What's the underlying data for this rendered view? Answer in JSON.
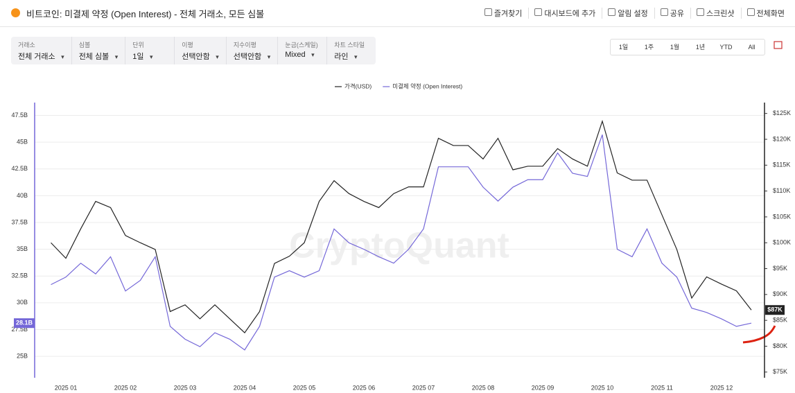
{
  "header": {
    "title": "비트코인: 미결제 약정 (Open Interest) - 전체 거래소, 모든 심볼",
    "actions": [
      "즐겨찾기",
      "대시보드에 추가",
      "알림 설정",
      "공유",
      "스크린샷",
      "전체화면"
    ]
  },
  "filters": [
    {
      "label": "거래소",
      "value": "전체 거래소"
    },
    {
      "label": "심볼",
      "value": "전체 심볼"
    },
    {
      "label": "단위",
      "value": "1일"
    },
    {
      "label": "이평",
      "value": "선택안함"
    },
    {
      "label": "지수이평",
      "value": "선택안함"
    },
    {
      "label": "눈금(스케일)",
      "value": "Mixed"
    },
    {
      "label": "차트 스타일",
      "value": "라인"
    }
  ],
  "ranges": [
    "1일",
    "1주",
    "1월",
    "1년",
    "YTD",
    "All"
  ],
  "chart_data": {
    "type": "line",
    "watermark": "CryptoQuant",
    "grid": true,
    "categories": [
      null,
      "2025 01",
      null,
      null,
      null,
      "2025 02",
      null,
      null,
      null,
      "2025 03",
      null,
      null,
      null,
      "2025 04",
      null,
      null,
      null,
      "2025 05",
      null,
      null,
      null,
      "2025 06",
      null,
      null,
      null,
      "2025 07",
      null,
      null,
      null,
      "2025 08",
      null,
      null,
      null,
      "2025 09",
      null,
      null,
      null,
      "2025 10",
      null,
      null,
      null,
      "2025 11",
      null,
      null,
      null,
      "2025 12",
      null,
      null
    ],
    "series": [
      {
        "name": "가격(USD)",
        "color": "#222222",
        "axis": "y2",
        "last_label": "$87K",
        "values": [
          100,
          97,
          102.7,
          108,
          106.8,
          101.4,
          100,
          98.7,
          86.7,
          88,
          85.3,
          88,
          85.3,
          82.6,
          86.7,
          96,
          97.4,
          100,
          108,
          112,
          109.5,
          108,
          106.8,
          109.5,
          110.8,
          110.8,
          120.2,
          118.8,
          118.8,
          116.2,
          120.2,
          114.1,
          114.8,
          114.8,
          118.2,
          116.2,
          114.8,
          123.5,
          113.5,
          112.1,
          112.1,
          105.4,
          98.7,
          89.3,
          93.4,
          92,
          90.7,
          87
        ]
      },
      {
        "name": "미결제 약정 (Open Interest)",
        "color": "#7467d8",
        "last_label": "28.1B",
        "values": [
          31.7,
          32.4,
          33.7,
          32.7,
          34.3,
          31.1,
          32.1,
          34.3,
          27.8,
          26.6,
          25.9,
          27.2,
          26.6,
          25.6,
          27.8,
          32.4,
          33,
          32.4,
          33,
          36.9,
          35.6,
          35,
          34.3,
          33.7,
          35,
          36.9,
          42.7,
          42.7,
          42.7,
          40.8,
          39.5,
          40.8,
          41.5,
          41.5,
          44,
          42.1,
          41.8,
          45.7,
          35,
          34.3,
          36.9,
          33.7,
          32.4,
          29.5,
          29.1,
          28.5,
          27.8,
          28.1
        ]
      }
    ],
    "ylim": [
      23,
      48.7
    ],
    "yticks": [
      {
        "value": 25,
        "label": "25B"
      },
      {
        "value": 27.5,
        "label": "27.5B"
      },
      {
        "value": 30,
        "label": "30B"
      },
      {
        "value": 32.5,
        "label": "32.5B"
      },
      {
        "value": 35,
        "label": "35B"
      },
      {
        "value": 37.5,
        "label": "37.5B"
      },
      {
        "value": 40,
        "label": "40B"
      },
      {
        "value": 42.5,
        "label": "42.5B"
      },
      {
        "value": 45,
        "label": "45B"
      },
      {
        "value": 47.5,
        "label": "47.5B"
      }
    ],
    "y2lim": [
      73.9,
      127.1
    ],
    "y2ticks": [
      {
        "value": 75,
        "label": "$75K"
      },
      {
        "value": 80,
        "label": "$80K"
      },
      {
        "value": 85,
        "label": "$85K"
      },
      {
        "value": 90,
        "label": "$90K"
      },
      {
        "value": 95,
        "label": "$95K"
      },
      {
        "value": 100,
        "label": "$100K"
      },
      {
        "value": 105,
        "label": "$105K"
      },
      {
        "value": 110,
        "label": "$110K"
      },
      {
        "value": 115,
        "label": "$115K"
      },
      {
        "value": 120,
        "label": "$120K"
      },
      {
        "value": 125,
        "label": "$125K"
      }
    ]
  }
}
